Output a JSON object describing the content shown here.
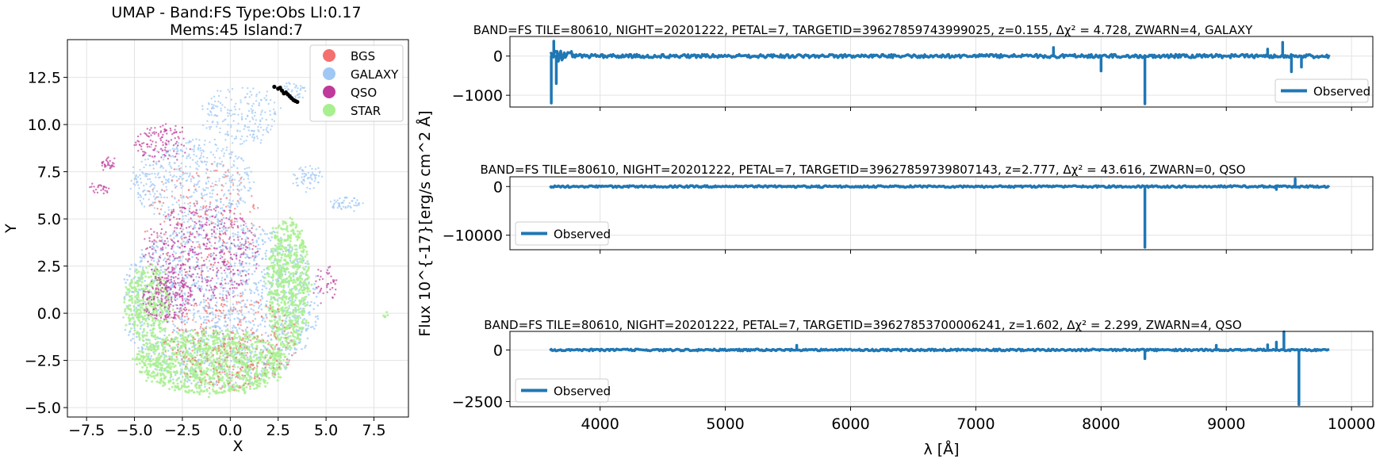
{
  "figure": {
    "ylabel_shared": "Flux 10^{-17}[erg/s cm^2 Å]"
  },
  "chart_data": [
    {
      "type": "scatter",
      "title_lines": [
        "UMAP  -  Band:FS Type:Obs Ll:0.17",
        "Mems:45 Island:7"
      ],
      "xlabel": "X",
      "ylabel": "Y",
      "xlim": [
        -8.5,
        9.3
      ],
      "ylim": [
        -5.5,
        14.5
      ],
      "xticks": [
        -7.5,
        -5.0,
        -2.5,
        0.0,
        2.5,
        5.0,
        7.5
      ],
      "yticks": [
        -5.0,
        -2.5,
        0.0,
        2.5,
        5.0,
        7.5,
        10.0,
        12.5
      ],
      "grid": true,
      "legend_position": "top-right",
      "series": [
        {
          "name": "BGS",
          "color": "#f4706e"
        },
        {
          "name": "GALAXY",
          "color": "#9fc8f4"
        },
        {
          "name": "QSO",
          "color": "#bf3a9a"
        },
        {
          "name": "STAR",
          "color": "#a8f08f"
        }
      ],
      "highlight_members": {
        "color": "#000000",
        "points": [
          [
            2.3,
            12.0
          ],
          [
            2.5,
            11.9
          ],
          [
            2.7,
            11.8
          ],
          [
            2.9,
            11.7
          ],
          [
            3.0,
            11.6
          ],
          [
            3.2,
            11.4
          ],
          [
            3.3,
            11.3
          ],
          [
            3.5,
            11.2
          ],
          [
            2.6,
            11.95
          ],
          [
            2.8,
            11.65
          ],
          [
            3.1,
            11.5
          ],
          [
            3.4,
            11.25
          ]
        ]
      }
    },
    {
      "type": "line",
      "title": "BAND=FS TILE=80610, NIGHT=20201222, PETAL=7, TARGETID=39627859743999025, z=0.155, Δχ² = 4.728, ZWARN=4, GALAXY",
      "series": [
        {
          "name": "Observed",
          "color": "#1f77b4"
        }
      ],
      "legend_position": "bottom-right",
      "xlim": [
        3280,
        10170
      ],
      "ylim": [
        -1300,
        500
      ],
      "yticks": [
        0,
        -1000
      ],
      "x_range": [
        3600,
        9830
      ],
      "features": [
        {
          "x": 3610,
          "y": -1200
        },
        {
          "x": 3630,
          "y": 380
        },
        {
          "x": 3650,
          "y": -700
        },
        {
          "x": 7620,
          "y": 220
        },
        {
          "x": 8000,
          "y": -380
        },
        {
          "x": 8350,
          "y": -1220
        },
        {
          "x": 9330,
          "y": 180
        },
        {
          "x": 9450,
          "y": 350
        },
        {
          "x": 9520,
          "y": -400
        },
        {
          "x": 9600,
          "y": -280
        }
      ]
    },
    {
      "type": "line",
      "title": "BAND=FS TILE=80610, NIGHT=20201222, PETAL=7, TARGETID=39627859739807143, z=2.777, Δχ² = 43.616, ZWARN=0, QSO",
      "series": [
        {
          "name": "Observed",
          "color": "#1f77b4"
        }
      ],
      "legend_position": "bottom-left",
      "xlim": [
        3280,
        10170
      ],
      "ylim": [
        -13000,
        2000
      ],
      "yticks": [
        0,
        -10000
      ],
      "x_range": [
        3600,
        9830
      ],
      "features": [
        {
          "x": 8350,
          "y": -12500
        },
        {
          "x": 9400,
          "y": -600
        },
        {
          "x": 9550,
          "y": 1600
        }
      ]
    },
    {
      "type": "line",
      "title": "BAND=FS TILE=80610, NIGHT=20201222, PETAL=7, TARGETID=39627853700006241, z=1.602, Δχ² = 2.299, ZWARN=4, QSO",
      "series": [
        {
          "name": "Observed",
          "color": "#1f77b4"
        }
      ],
      "legend_position": "bottom-left",
      "xlabel": "λ [Å]",
      "xlim": [
        3280,
        10170
      ],
      "ylim": [
        -2750,
        900
      ],
      "yticks": [
        0,
        -2500
      ],
      "xticks": [
        4000,
        5000,
        6000,
        7000,
        8000,
        9000,
        10000
      ],
      "x_range": [
        3600,
        9830
      ],
      "features": [
        {
          "x": 5570,
          "y": 230
        },
        {
          "x": 8350,
          "y": -420
        },
        {
          "x": 8920,
          "y": 230
        },
        {
          "x": 9330,
          "y": 250
        },
        {
          "x": 9400,
          "y": 380
        },
        {
          "x": 9460,
          "y": 880
        },
        {
          "x": 9580,
          "y": -2650
        }
      ]
    }
  ]
}
